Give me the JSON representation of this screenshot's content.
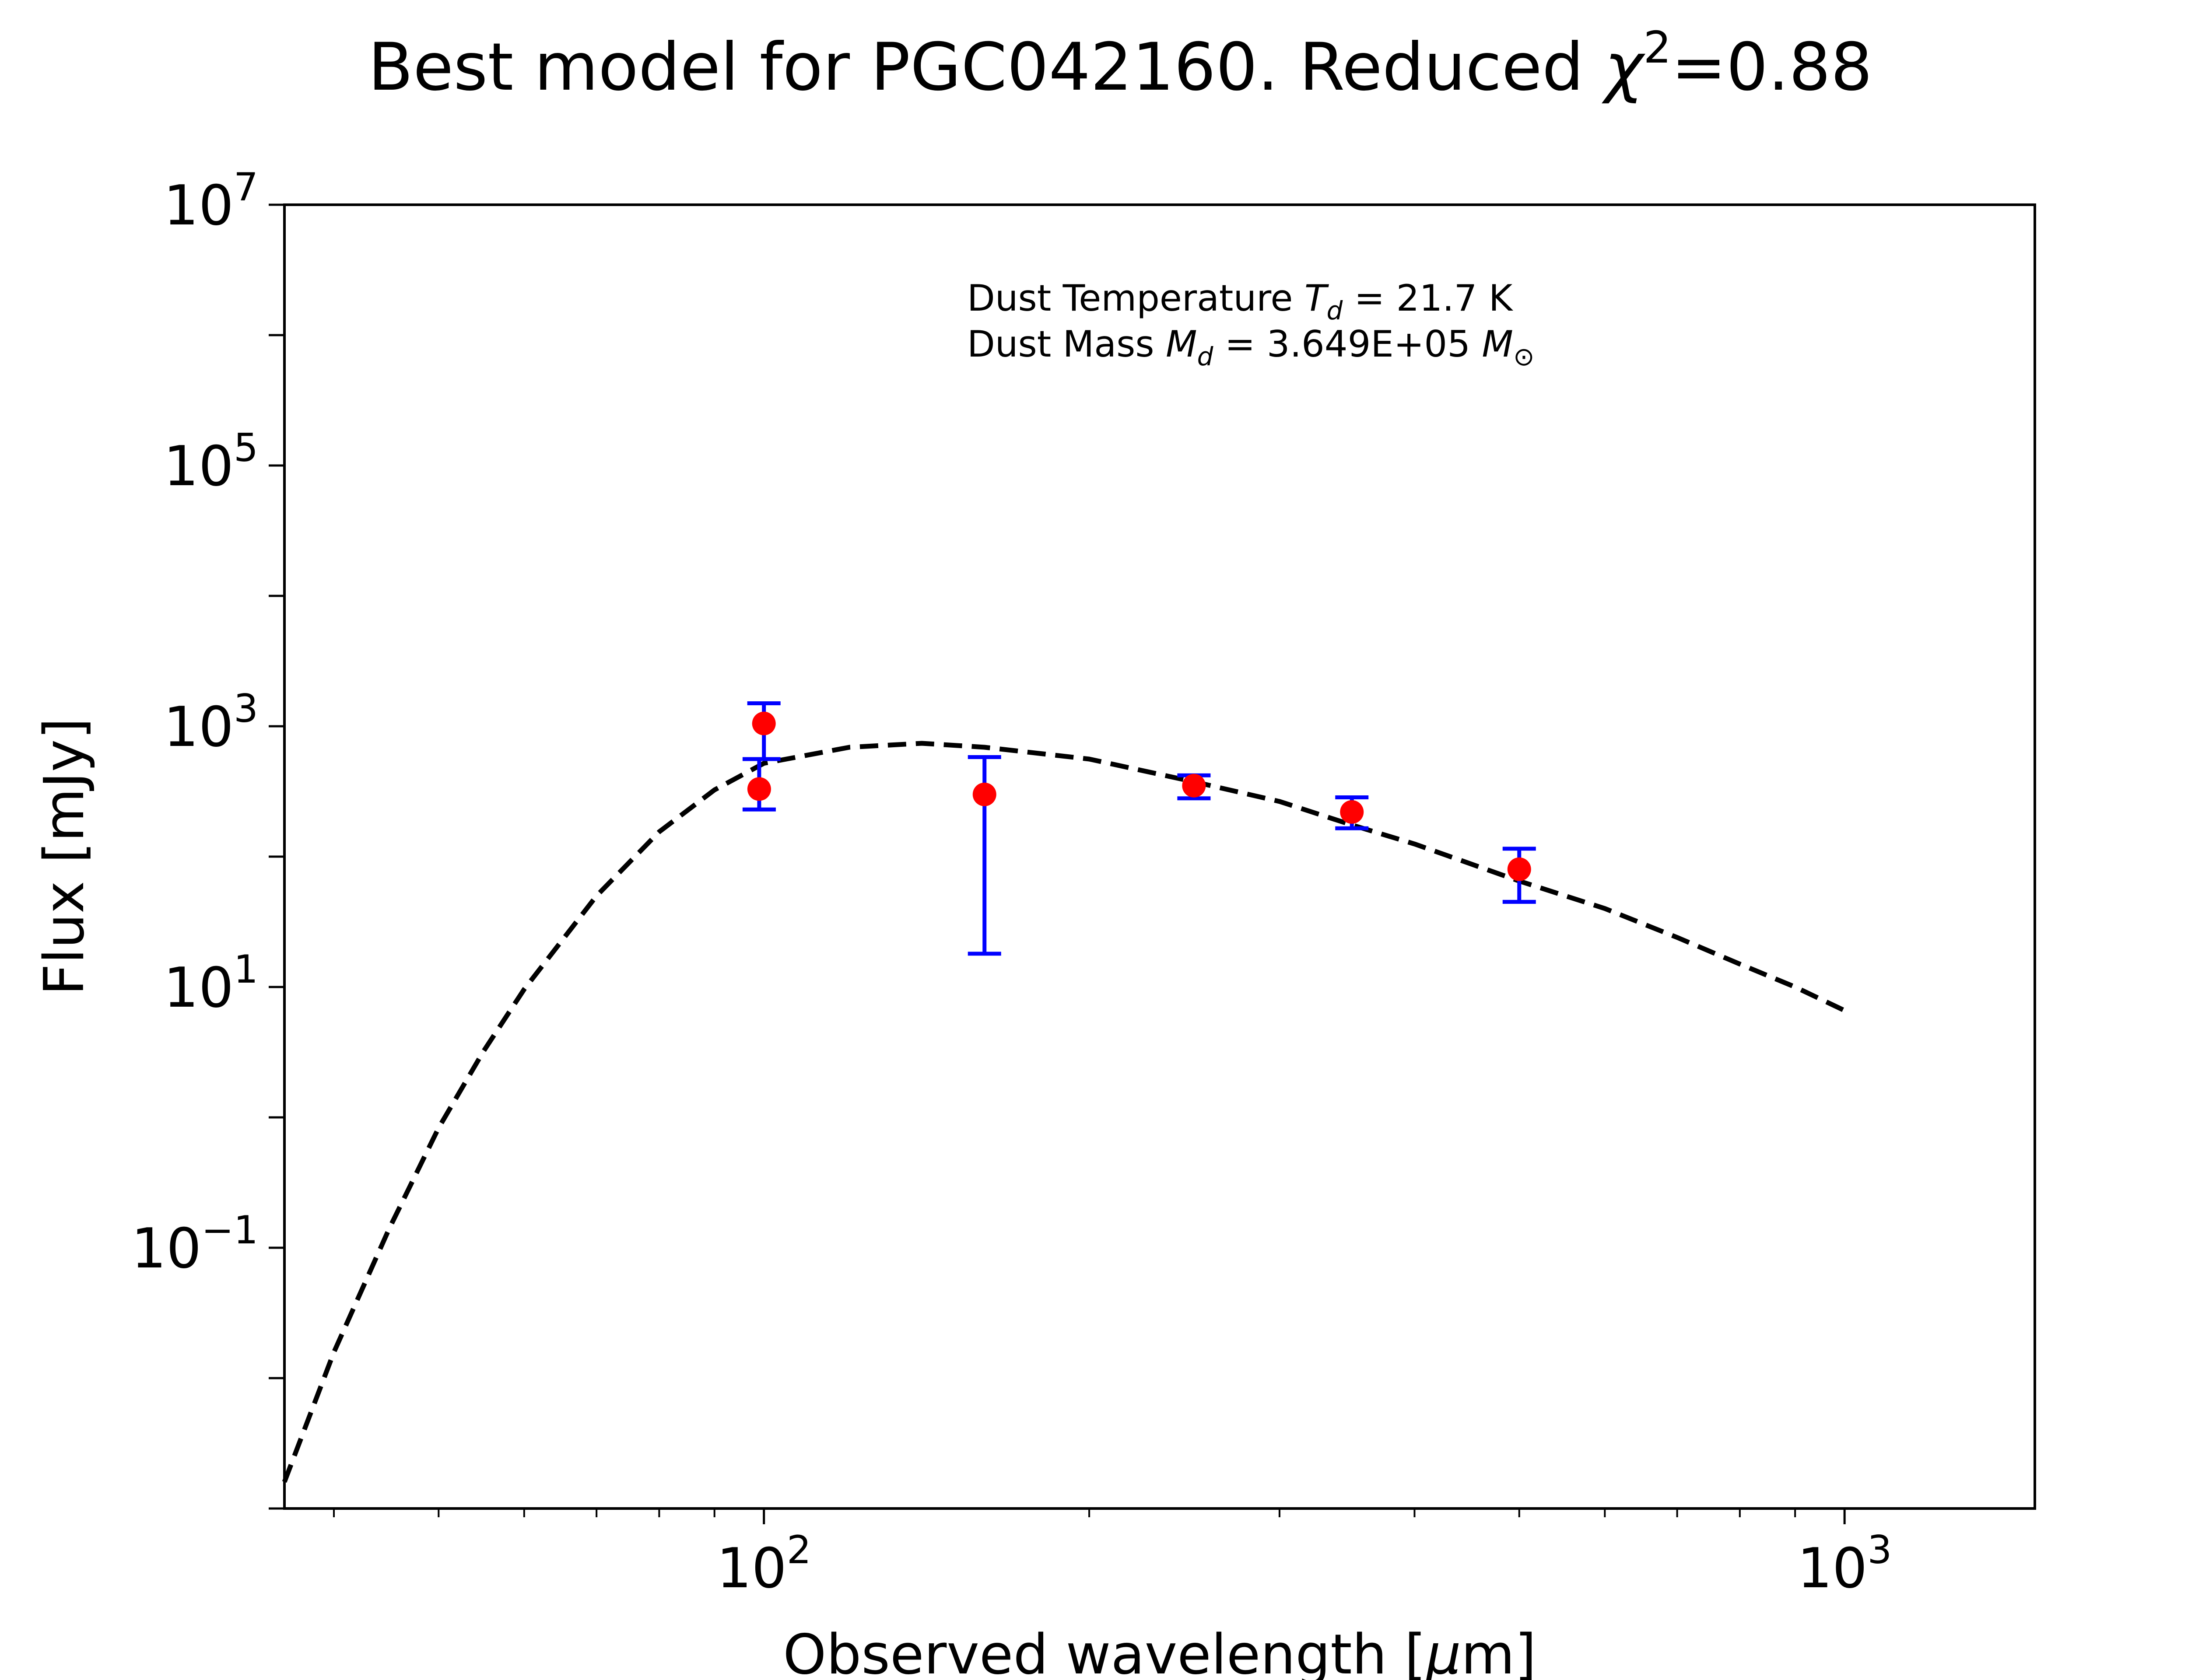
{
  "chart_data": {
    "type": "scatter",
    "title": {
      "prefix": "Best model for PGC042160. Reduced ",
      "symbol": "χ",
      "superscript": "2",
      "suffix": "=0.88"
    },
    "xlabel": {
      "prefix": "Observed wavelength [",
      "symbol": "μ",
      "suffix": "m]"
    },
    "ylabel": "Flux [mJy]",
    "x_scale": "log",
    "y_scale": "log",
    "xlim": [
      36,
      1500
    ],
    "ylim": [
      0.001,
      10000000
    ],
    "x_ticks": [
      {
        "value": 100,
        "base": "10",
        "exp": "2"
      },
      {
        "value": 1000,
        "base": "10",
        "exp": "3"
      }
    ],
    "y_ticks": [
      {
        "value": 0.1,
        "base": "10",
        "exp": "−1"
      },
      {
        "value": 10,
        "base": "10",
        "exp": "1"
      },
      {
        "value": 1000,
        "base": "10",
        "exp": "3"
      },
      {
        "value": 100000,
        "base": "10",
        "exp": "5"
      },
      {
        "value": 10000000,
        "base": "10",
        "exp": "7"
      }
    ],
    "grid": false,
    "annotation": {
      "line1": {
        "prefix": "Dust Temperature ",
        "sym": "T",
        "sub": "d",
        "suffix": " = 21.7 K"
      },
      "line2": {
        "prefix": "Dust Mass ",
        "sym": "M",
        "sub": "d",
        "mid": " = 3.649E+05 ",
        "sym2": "M",
        "sub2": "⊙"
      }
    },
    "model": {
      "style": "dashed",
      "color": "#000000",
      "x": [
        36,
        40,
        45,
        50,
        55,
        60,
        70,
        80,
        90,
        100,
        120,
        140,
        160,
        200,
        250,
        300,
        350,
        400,
        500,
        600,
        700,
        800,
        900,
        1000
      ],
      "y": [
        0.0016,
        0.0158,
        0.14,
        0.83,
        3.2,
        9.6,
        50,
        155,
        325,
        520,
        690,
        740,
        690,
        560,
        375,
        265,
        175,
        125,
        65,
        40,
        24,
        15,
        10,
        6.6
      ]
    },
    "observations": {
      "marker_color": "#ff0000",
      "errorbar_color": "#0000ff",
      "points": [
        {
          "x": 99,
          "y": 330,
          "yerr_low": 230,
          "yerr_high": 560
        },
        {
          "x": 100,
          "y": 1050,
          "yerr_low": 560,
          "yerr_high": 1500
        },
        {
          "x": 160,
          "y": 300,
          "yerr_low": 18,
          "yerr_high": 580
        },
        {
          "x": 250,
          "y": 350,
          "yerr_low": 280,
          "yerr_high": 420
        },
        {
          "x": 350,
          "y": 220,
          "yerr_low": 165,
          "yerr_high": 285
        },
        {
          "x": 500,
          "y": 80,
          "yerr_low": 45,
          "yerr_high": 115
        }
      ]
    }
  }
}
